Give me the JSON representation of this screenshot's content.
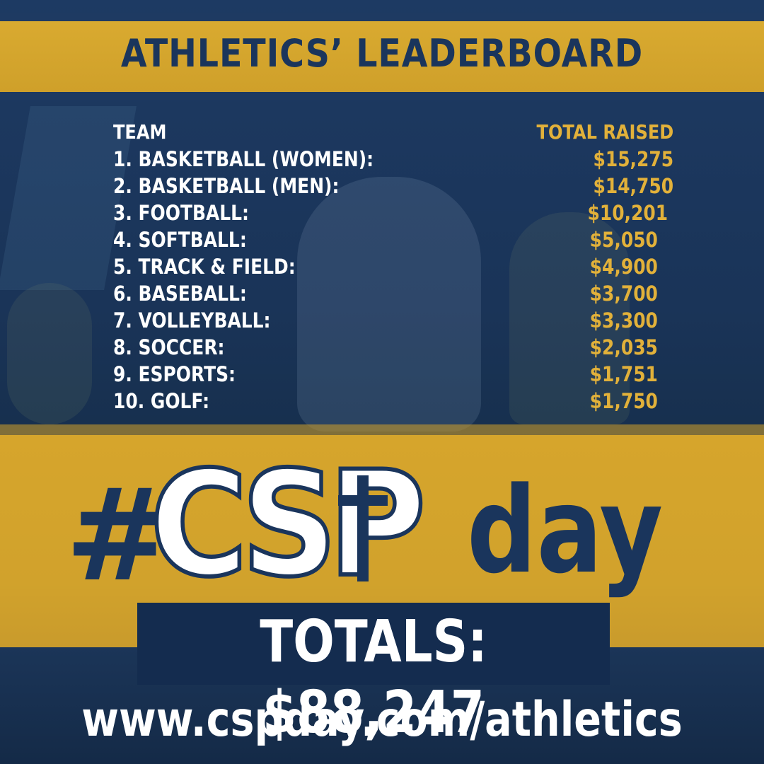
{
  "title": "ATHLETICS’ LEADERBOARD",
  "table": {
    "col_team": "TEAM",
    "col_total": "TOTAL RAISED",
    "rows": [
      {
        "team": "1. BASKETBALL (WOMEN):",
        "amount": "$15,275"
      },
      {
        "team": "2. BASKETBALL (MEN):",
        "amount": "$14,750"
      },
      {
        "team": "3. FOOTBALL:",
        "amount": "$10,201"
      },
      {
        "team": "4. SOFTBALL:",
        "amount": "$5,050"
      },
      {
        "team": "5. TRACK & FIELD:",
        "amount": "$4,900"
      },
      {
        "team": "6. BASEBALL:",
        "amount": "$3,700"
      },
      {
        "team": "7. VOLLEYBALL:",
        "amount": "$3,300"
      },
      {
        "team": "8. SOCCER:",
        "amount": "$2,035"
      },
      {
        "team": "9. ESPORTS:",
        "amount": "$1,751"
      },
      {
        "team": "10. GOLF:",
        "amount": "$1,750"
      }
    ]
  },
  "hashtag": {
    "hash": "#",
    "csp": "CSP",
    "day": "day"
  },
  "totals": "TOTALS: $88,247",
  "url": "www.cspday.com/athletics",
  "colors": {
    "navy": "#1a355c",
    "gold": "#d6a52c",
    "gold_text": "#e2b13a",
    "white": "#ffffff"
  }
}
